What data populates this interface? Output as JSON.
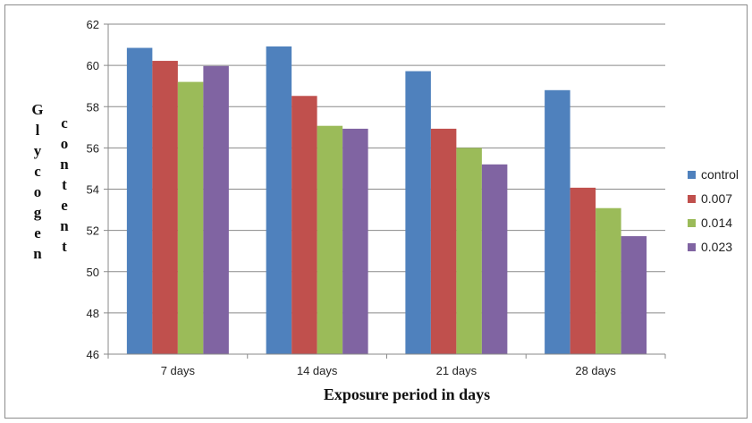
{
  "chart_data": {
    "type": "bar",
    "categories": [
      "7 days",
      "14 days",
      "21 days",
      "28 days"
    ],
    "series": [
      {
        "name": "control",
        "values": [
          60.85,
          60.92,
          59.72,
          58.8
        ],
        "color": "#4f81bd"
      },
      {
        "name": "0.007",
        "values": [
          60.22,
          58.52,
          56.93,
          54.07
        ],
        "color": "#c0504d"
      },
      {
        "name": "0.014",
        "values": [
          59.2,
          57.07,
          56.0,
          53.08
        ],
        "color": "#9bbb59"
      },
      {
        "name": "0.023",
        "values": [
          59.97,
          56.93,
          55.2,
          51.72
        ],
        "color": "#8064a2"
      }
    ],
    "title": "",
    "xlabel": "Exposure period in days",
    "ylabel_lines": [
      "Glycogen",
      "content"
    ],
    "ylim": [
      46,
      62
    ],
    "yticks": [
      46,
      48,
      50,
      52,
      54,
      56,
      58,
      60,
      62
    ],
    "grid": true,
    "legend_position": "right"
  }
}
